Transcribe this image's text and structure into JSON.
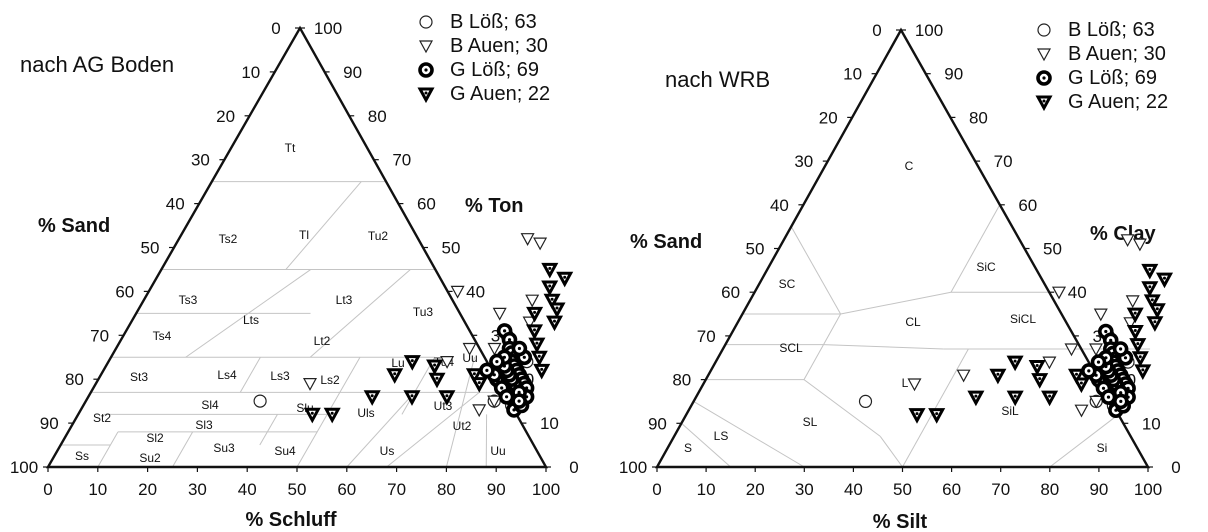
{
  "chart_data": [
    {
      "type": "scatter",
      "subtype": "ternary",
      "title": "nach AG Boden",
      "left_axis_label": "% Sand",
      "right_axis_label": "% Ton",
      "bottom_axis_label": "% Schluff",
      "ticks": [
        0,
        10,
        20,
        30,
        40,
        50,
        60,
        70,
        80,
        90,
        100
      ],
      "grid": false,
      "legend_position": "top-right",
      "classes": [
        "Tt",
        "Ts2",
        "Tl",
        "Tu2",
        "Ts3",
        "Lts",
        "Lt3",
        "Tu3",
        "Ts4",
        "Lt2",
        "Lu",
        "Tu4",
        "St3",
        "Ls4",
        "Ls3",
        "Ls2",
        "Sl4",
        "Slu",
        "Uls",
        "Uu",
        "Ut3",
        "Sl3",
        "Ut2",
        "St2",
        "Sl2",
        "Ss",
        "Su2",
        "Su3",
        "Su4",
        "Us",
        "Ut4"
      ],
      "class_lines": [
        [
          [
            0,
            65
          ],
          [
            35,
            65
          ]
        ],
        [
          [
            0,
            45
          ],
          [
            55,
            45
          ]
        ],
        [
          [
            0,
            35
          ],
          [
            35,
            35
          ]
        ],
        [
          [
            0,
            25
          ],
          [
            65,
            25
          ]
        ],
        [
          [
            0,
            17
          ],
          [
            83,
            17
          ]
        ],
        [
          [
            5,
            12
          ],
          [
            50,
            12
          ]
        ],
        [
          [
            10,
            8
          ],
          [
            50,
            8
          ]
        ],
        [
          [
            0,
            5
          ],
          [
            10,
            5
          ]
        ],
        [
          [
            25,
            45
          ],
          [
            30,
            65
          ]
        ],
        [
          [
            15,
            25
          ],
          [
            30,
            45
          ]
        ],
        [
          [
            40,
            25
          ],
          [
            50,
            45
          ]
        ],
        [
          [
            30,
            17
          ],
          [
            30,
            25
          ]
        ],
        [
          [
            50,
            0
          ],
          [
            50,
            25
          ]
        ],
        [
          [
            40,
            5
          ],
          [
            40,
            12
          ]
        ],
        [
          [
            10,
            0
          ],
          [
            10,
            8
          ]
        ],
        [
          [
            25,
            0
          ],
          [
            25,
            8
          ]
        ],
        [
          [
            65,
            12
          ],
          [
            65,
            25
          ]
        ],
        [
          [
            65,
            17
          ],
          [
            60,
            0
          ]
        ],
        [
          [
            73,
            25
          ],
          [
            80,
            0
          ]
        ],
        [
          [
            78,
            17
          ],
          [
            68,
            0
          ]
        ],
        [
          [
            82,
            12
          ],
          [
            88,
            0
          ]
        ]
      ],
      "series": [
        {
          "name": "B Löß; 63",
          "marker": "circle-open",
          "points": [
            [
              35,
              15
            ],
            [
              77,
              30
            ],
            [
              80,
              22
            ],
            [
              82,
              20
            ],
            [
              84,
              18
            ],
            [
              85,
              16
            ],
            [
              82,
              15
            ],
            [
              80,
              25
            ],
            [
              83,
              22
            ],
            [
              86,
              14
            ],
            [
              81,
              19
            ],
            [
              84,
              24
            ],
            [
              79,
              27
            ],
            [
              85,
              20
            ],
            [
              83,
              17
            ]
          ]
        },
        {
          "name": "B Auen; 30",
          "marker": "triangle-down-open",
          "points": [
            [
              43,
              19
            ],
            [
              62,
              40
            ],
            [
              70,
              52
            ],
            [
              78,
              38
            ],
            [
              73,
              35
            ],
            [
              82,
              15
            ],
            [
              76,
              27
            ],
            [
              71,
              27
            ],
            [
              80,
              13
            ],
            [
              68,
              24
            ],
            [
              80,
              33
            ],
            [
              73,
              51
            ]
          ]
        },
        {
          "name": "G Löß; 69",
          "marker": "circle-bold",
          "points": [
            [
              76,
              31
            ],
            [
              78,
              29
            ],
            [
              79,
              27
            ],
            [
              80,
              26
            ],
            [
              81,
              24
            ],
            [
              82,
              23
            ],
            [
              83,
              22
            ],
            [
              84,
              21
            ],
            [
              85,
              20
            ],
            [
              86,
              19
            ],
            [
              87,
              18
            ],
            [
              88,
              16
            ],
            [
              86,
              15
            ],
            [
              87,
              13
            ],
            [
              85,
              17
            ],
            [
              84,
              19
            ],
            [
              83,
              20
            ],
            [
              82,
              21
            ],
            [
              81,
              22
            ],
            [
              80,
              23
            ],
            [
              79,
              25
            ],
            [
              78,
              24
            ],
            [
              80,
              20
            ],
            [
              82,
              18
            ],
            [
              84,
              16
            ],
            [
              86,
              17
            ],
            [
              88,
              14
            ],
            [
              87,
              15
            ],
            [
              83,
              25
            ],
            [
              81,
              27
            ],
            [
              79,
              21
            ],
            [
              77,
              22
            ]
          ]
        },
        {
          "name": "G Auen; 22",
          "marker": "triangle-down-dot",
          "points": [
            [
              47,
              12
            ],
            [
              51,
              12
            ],
            [
              57,
              16
            ],
            [
              65,
              16
            ],
            [
              72,
              16
            ],
            [
              66,
              23
            ],
            [
              59,
              21
            ],
            [
              61,
              24
            ],
            [
              68,
              20
            ],
            [
              75,
              21
            ],
            [
              77,
              19
            ],
            [
              78,
              45
            ],
            [
              80,
              41
            ],
            [
              82,
              38
            ],
            [
              84,
              36
            ],
            [
              80,
              35
            ],
            [
              82,
              31
            ],
            [
              84,
              28
            ],
            [
              86,
              25
            ],
            [
              88,
              22
            ],
            [
              82,
              43
            ],
            [
              85,
              33
            ]
          ]
        }
      ]
    },
    {
      "type": "scatter",
      "subtype": "ternary",
      "title": "nach WRB",
      "left_axis_label": "% Sand",
      "right_axis_label": "% Clay",
      "bottom_axis_label": "% Silt",
      "ticks": [
        0,
        10,
        20,
        30,
        40,
        50,
        60,
        70,
        80,
        90,
        100
      ],
      "grid": false,
      "legend_position": "top-right",
      "classes": [
        "C",
        "SC",
        "SiC",
        "CL",
        "SiCL",
        "SCL",
        "L",
        "SiL",
        "SL",
        "LS",
        "S",
        "Si"
      ],
      "class_lines": [
        [
          [
            0,
            55
          ],
          [
            20,
            35
          ]
        ],
        [
          [
            20,
            35
          ],
          [
            40,
            40
          ]
        ],
        [
          [
            40,
            40
          ],
          [
            60,
            40
          ]
        ],
        [
          [
            40,
            60
          ],
          [
            40,
            40
          ]
        ],
        [
          [
            0,
            35
          ],
          [
            20,
            35
          ]
        ],
        [
          [
            20,
            35
          ],
          [
            20,
            28
          ]
        ],
        [
          [
            0,
            28
          ],
          [
            20,
            28
          ]
        ],
        [
          [
            20,
            28
          ],
          [
            45,
            27
          ]
        ],
        [
          [
            45,
            27
          ],
          [
            87,
            27
          ]
        ],
        [
          [
            0,
            20
          ],
          [
            20,
            20
          ]
        ],
        [
          [
            20,
            20
          ],
          [
            20,
            28
          ]
        ],
        [
          [
            20,
            20
          ],
          [
            42,
            7
          ]
        ],
        [
          [
            42,
            7
          ],
          [
            50,
            0
          ]
        ],
        [
          [
            50,
            0
          ],
          [
            50,
            27
          ]
        ],
        [
          [
            80,
            0
          ],
          [
            88,
            12
          ]
        ],
        [
          [
            88,
            12
          ],
          [
            100,
            0
          ]
        ],
        [
          [
            0,
            15
          ],
          [
            30,
            0
          ]
        ],
        [
          [
            0,
            10
          ],
          [
            15,
            0
          ]
        ],
        [
          [
            60,
            40
          ],
          [
            40,
            60
          ]
        ]
      ],
      "series": [
        {
          "name": "B Löß; 63",
          "marker": "circle-open",
          "points": [
            [
              35,
              15
            ],
            [
              77,
              30
            ],
            [
              80,
              22
            ],
            [
              82,
              20
            ],
            [
              84,
              18
            ],
            [
              85,
              16
            ],
            [
              82,
              15
            ],
            [
              80,
              25
            ],
            [
              83,
              22
            ],
            [
              86,
              14
            ],
            [
              81,
              19
            ],
            [
              84,
              24
            ],
            [
              79,
              27
            ],
            [
              85,
              20
            ],
            [
              83,
              17
            ]
          ]
        },
        {
          "name": "B Auen; 30",
          "marker": "triangle-down-open",
          "points": [
            [
              43,
              19
            ],
            [
              52,
              21
            ],
            [
              62,
              40
            ],
            [
              70,
              52
            ],
            [
              78,
              38
            ],
            [
              73,
              35
            ],
            [
              82,
              15
            ],
            [
              76,
              27
            ],
            [
              71,
              27
            ],
            [
              80,
              13
            ],
            [
              68,
              24
            ],
            [
              80,
              33
            ],
            [
              73,
              51
            ]
          ]
        },
        {
          "name": "G Löß; 69",
          "marker": "circle-bold",
          "points": [
            [
              76,
              31
            ],
            [
              78,
              29
            ],
            [
              79,
              27
            ],
            [
              80,
              26
            ],
            [
              81,
              24
            ],
            [
              82,
              23
            ],
            [
              83,
              22
            ],
            [
              84,
              21
            ],
            [
              85,
              20
            ],
            [
              86,
              19
            ],
            [
              87,
              18
            ],
            [
              88,
              16
            ],
            [
              86,
              15
            ],
            [
              87,
              13
            ],
            [
              85,
              17
            ],
            [
              84,
              19
            ],
            [
              83,
              20
            ],
            [
              82,
              21
            ],
            [
              81,
              22
            ],
            [
              80,
              23
            ],
            [
              79,
              25
            ],
            [
              78,
              24
            ],
            [
              80,
              20
            ],
            [
              82,
              18
            ],
            [
              84,
              16
            ],
            [
              86,
              17
            ],
            [
              88,
              14
            ],
            [
              87,
              15
            ],
            [
              83,
              25
            ],
            [
              81,
              27
            ],
            [
              79,
              21
            ],
            [
              77,
              22
            ]
          ]
        },
        {
          "name": "G Auen; 22",
          "marker": "triangle-down-dot",
          "points": [
            [
              47,
              12
            ],
            [
              51,
              12
            ],
            [
              57,
              16
            ],
            [
              65,
              16
            ],
            [
              72,
              16
            ],
            [
              66,
              23
            ],
            [
              59,
              21
            ],
            [
              61,
              24
            ],
            [
              68,
              20
            ],
            [
              75,
              21
            ],
            [
              77,
              19
            ],
            [
              78,
              45
            ],
            [
              80,
              41
            ],
            [
              82,
              38
            ],
            [
              84,
              36
            ],
            [
              80,
              35
            ],
            [
              82,
              31
            ],
            [
              84,
              28
            ],
            [
              86,
              25
            ],
            [
              88,
              22
            ],
            [
              82,
              43
            ],
            [
              85,
              33
            ]
          ]
        }
      ]
    }
  ]
}
